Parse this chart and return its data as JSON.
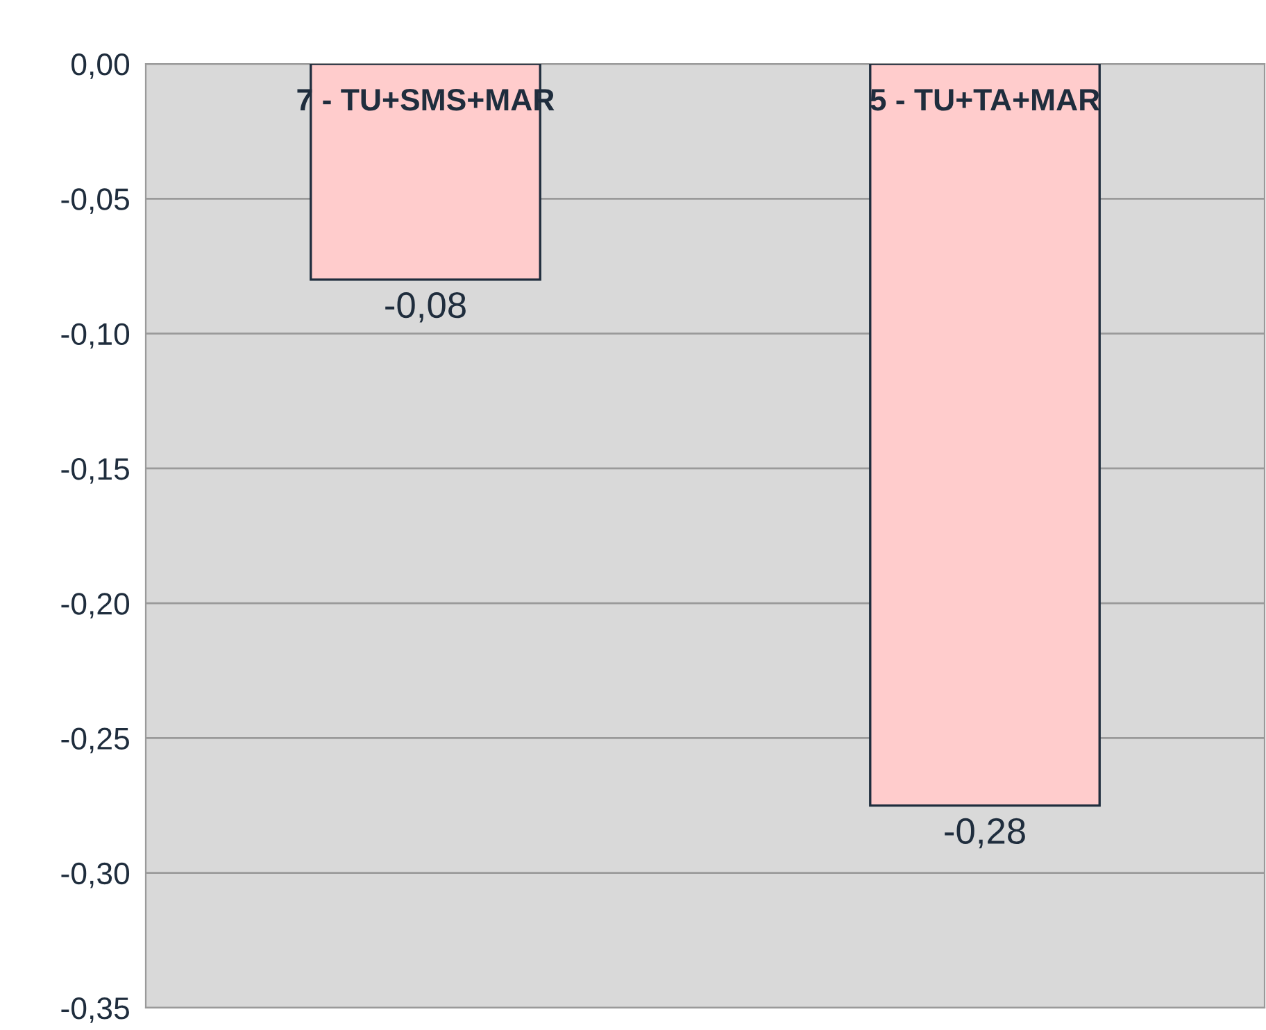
{
  "chart_data": {
    "type": "bar",
    "categories": [
      "7 - TU+SMS+MAR",
      "5 - TU+TA+MAR"
    ],
    "values": [
      -0.08,
      -0.275
    ],
    "value_labels": [
      "-0,08",
      "-0,28"
    ],
    "color": "#ffcccc",
    "ylim": [
      -0.35,
      0
    ],
    "yticks": [
      {
        "value": 0,
        "label": "0,00"
      },
      {
        "value": -0.05,
        "label": "-0,05"
      },
      {
        "value": -0.1,
        "label": "-0,10"
      },
      {
        "value": -0.15,
        "label": "-0,15"
      },
      {
        "value": -0.2,
        "label": "-0,20"
      },
      {
        "value": -0.25,
        "label": "-0,25"
      },
      {
        "value": -0.3,
        "label": "-0,30"
      },
      {
        "value": -0.35,
        "label": "-0,35"
      }
    ],
    "grid": "y"
  }
}
